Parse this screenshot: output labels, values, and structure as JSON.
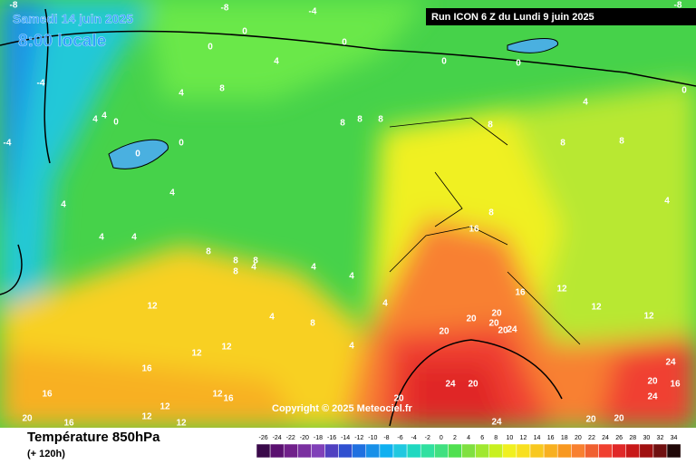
{
  "header": {
    "date": "Samedi 14 juin 2025",
    "time": "8:00 locale",
    "run": "Run ICON 6 Z du Lundi 9 juin 2025"
  },
  "copyright": "Copyright © 2025 Meteociel.fr",
  "footer": {
    "title": "Température 850hPa",
    "subtitle": "(+ 120h)"
  },
  "colorbar": {
    "values": [
      -26,
      -24,
      -22,
      -20,
      -18,
      -16,
      -14,
      -12,
      -10,
      -8,
      -6,
      -4,
      -2,
      0,
      2,
      4,
      6,
      8,
      10,
      12,
      14,
      16,
      18,
      20,
      22,
      24,
      26,
      28,
      30,
      32,
      34
    ],
    "colors": [
      "#3a0a4a",
      "#5a1070",
      "#70208a",
      "#7a30a0",
      "#8040b8",
      "#5040c0",
      "#3050d0",
      "#2070e0",
      "#1890e8",
      "#10b0f0",
      "#20c8e0",
      "#20d8c0",
      "#30e0a0",
      "#40e080",
      "#50e050",
      "#80e040",
      "#a0e830",
      "#c8f020",
      "#f0f020",
      "#f8e020",
      "#f8c820",
      "#f8b020",
      "#f89820",
      "#f88030",
      "#f06030",
      "#f04030",
      "#e02828",
      "#c81818",
      "#a01010",
      "#701010",
      "#200808"
    ]
  },
  "contour_labels": [
    -8,
    -8,
    -4,
    -8,
    0,
    0,
    0,
    0,
    0,
    -4,
    4,
    4,
    4,
    4,
    0,
    -4,
    4,
    4,
    4,
    0,
    0,
    4,
    8,
    8,
    8,
    8,
    4,
    4,
    4,
    4,
    4,
    0,
    8,
    8,
    8,
    8,
    8,
    4,
    8,
    8,
    8,
    8,
    4,
    4,
    16,
    16,
    12,
    12,
    12,
    12,
    16,
    12,
    12,
    12,
    16,
    16,
    16,
    12,
    12,
    12,
    20,
    20,
    20,
    20,
    20,
    24,
    24,
    20,
    24,
    20,
    20,
    24,
    16,
    20,
    20,
    20,
    24
  ]
}
